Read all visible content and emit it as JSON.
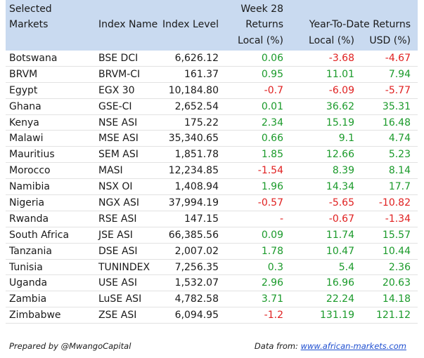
{
  "header": {
    "markets_line1": "Selected",
    "markets_line2": "Markets",
    "index_name": "Index Name",
    "index_level": "Index Level",
    "week_line1": "Week 28",
    "week_line2": "Returns",
    "week_line3": "Local (%)",
    "ytd_group": "Year-To-Date Returns",
    "ytd_local": "Local (%)",
    "ytd_usd": "USD (%)"
  },
  "rows": [
    {
      "market": "Botswana",
      "index": "BSE DCI",
      "level": "6,626.12",
      "week": "0.06",
      "ytd_local": "-3.68",
      "ytd_usd": "-4.67"
    },
    {
      "market": "BRVM",
      "index": "BRVM-CI",
      "level": "161.37",
      "week": "0.95",
      "ytd_local": "11.01",
      "ytd_usd": "7.94"
    },
    {
      "market": "Egypt",
      "index": "EGX 30",
      "level": "10,184.80",
      "week": "-0.7",
      "ytd_local": "-6.09",
      "ytd_usd": "-5.77"
    },
    {
      "market": "Ghana",
      "index": "GSE-CI",
      "level": "2,652.54",
      "week": "0.01",
      "ytd_local": "36.62",
      "ytd_usd": "35.31"
    },
    {
      "market": "Kenya",
      "index": "NSE ASI",
      "level": "175.22",
      "week": "2.34",
      "ytd_local": "15.19",
      "ytd_usd": "16.48"
    },
    {
      "market": "Malawi",
      "index": "MSE ASI",
      "level": "35,340.65",
      "week": "0.66",
      "ytd_local": "9.1",
      "ytd_usd": "4.74"
    },
    {
      "market": "Mauritius",
      "index": "SEM ASI",
      "level": "1,851.78",
      "week": "1.85",
      "ytd_local": "12.66",
      "ytd_usd": "5.23"
    },
    {
      "market": "Morocco",
      "index": "MASI",
      "level": "12,234.85",
      "week": "-1.54",
      "ytd_local": "8.39",
      "ytd_usd": "8.14"
    },
    {
      "market": "Namibia",
      "index": "NSX OI",
      "level": "1,408.94",
      "week": "1.96",
      "ytd_local": "14.34",
      "ytd_usd": "17.7"
    },
    {
      "market": "Nigeria",
      "index": "NGX ASI",
      "level": "37,994.19",
      "week": "-0.57",
      "ytd_local": "-5.65",
      "ytd_usd": "-10.82"
    },
    {
      "market": "Rwanda",
      "index": "RSE ASI",
      "level": "147.15",
      "week": "-",
      "ytd_local": "-0.67",
      "ytd_usd": "-1.34"
    },
    {
      "market": "South Africa",
      "index": "JSE ASI",
      "level": "66,385.56",
      "week": "0.09",
      "ytd_local": "11.74",
      "ytd_usd": "15.57"
    },
    {
      "market": "Tanzania",
      "index": "DSE ASI",
      "level": "2,007.02",
      "week": "1.78",
      "ytd_local": "10.47",
      "ytd_usd": "10.44"
    },
    {
      "market": "Tunisia",
      "index": "TUNINDEX",
      "level": "7,256.35",
      "week": "0.3",
      "ytd_local": "5.4",
      "ytd_usd": "2.36"
    },
    {
      "market": "Uganda",
      "index": "USE ASI",
      "level": "1,532.07",
      "week": "2.96",
      "ytd_local": "16.96",
      "ytd_usd": "20.63"
    },
    {
      "market": "Zambia",
      "index": "LuSE ASI",
      "level": "4,782.58",
      "week": "3.71",
      "ytd_local": "22.24",
      "ytd_usd": "14.18"
    },
    {
      "market": "Zimbabwe",
      "index": "ZSE ASI",
      "level": "6,094.95",
      "week": "-1.2",
      "ytd_local": "131.19",
      "ytd_usd": "121.12"
    }
  ],
  "footer": {
    "prepared_by": "Prepared by @MwangoCapital",
    "data_from_label": "Data from: ",
    "data_from_link": "www.african-markets.com"
  },
  "colors": {
    "header_bg": "#c9daf0",
    "positive": "#1a9a2a",
    "negative": "#e02020",
    "link": "#1f4fd0"
  }
}
